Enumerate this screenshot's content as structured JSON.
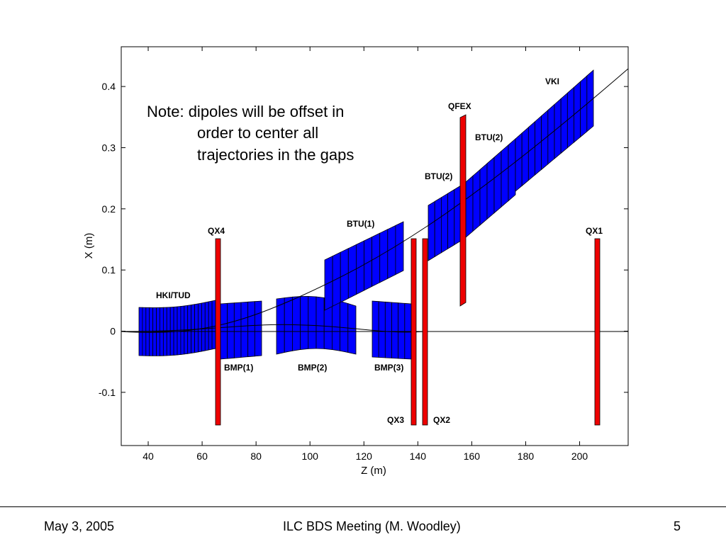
{
  "chart_data": {
    "type": "diagram",
    "xlabel": "Z (m)",
    "ylabel": "X (m)",
    "xlim": [
      30,
      218
    ],
    "ylim": [
      -0.187,
      0.465
    ],
    "xticks": [
      "40",
      "60",
      "80",
      "100",
      "120",
      "140",
      "160",
      "180",
      "200"
    ],
    "yticks": [
      "-0.1",
      "0",
      "0.1",
      "0.2",
      "0.3",
      "0.4"
    ],
    "note_lines": [
      "Note: dipoles will be offset in",
      "order to center all",
      "trajectories in the gaps"
    ],
    "magnet_labels": [
      "VKI",
      "QFEX",
      "BTU(2)",
      "BTU(2)",
      "BTU(1)",
      "QX4",
      "QX1",
      "HKI/TUD",
      "BMP(1)",
      "BMP(2)",
      "BMP(3)",
      "QX3",
      "QX2"
    ],
    "colors": {
      "dipole": "#0000ff",
      "quad": "#ee0000",
      "outline": "#000000"
    }
  },
  "footer": {
    "date": "May 3, 2005",
    "title": "ILC BDS Meeting (M. Woodley)",
    "page": "5"
  }
}
